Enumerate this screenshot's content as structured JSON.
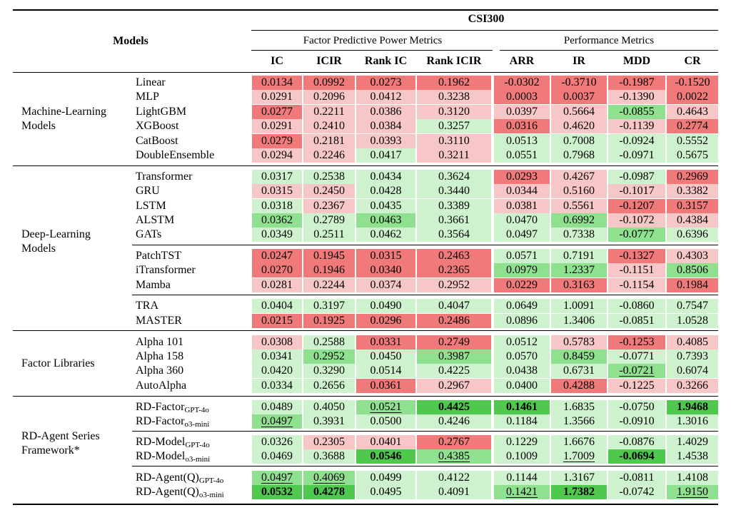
{
  "title": "CSI300",
  "header": {
    "models": "Models",
    "group1": "Factor Predictive Power Metrics",
    "group2": "Performance Metrics",
    "columns": [
      "IC",
      "ICIR",
      "Rank IC",
      "Rank ICIR",
      "ARR",
      "IR",
      "MDD",
      "CR"
    ]
  },
  "colors": {
    "red_strong": "#f07979",
    "red_light": "#f7c6c6",
    "green_light": "#cdf2cd",
    "green_mid": "#8fe08f",
    "green_strong": "#4ec94e",
    "green_dark": "#1aa81a"
  },
  "groups": [
    {
      "name_lines": [
        "Machine-Learning",
        "Models"
      ],
      "rows": [
        {
          "model": "Linear",
          "sub": "",
          "cells": [
            [
              "0.0134",
              "rs"
            ],
            [
              "0.0992",
              "rs"
            ],
            [
              "0.0273",
              "rs"
            ],
            [
              "0.1962",
              "rs"
            ],
            [
              "-0.0302",
              "rs"
            ],
            [
              "-0.3710",
              "rs"
            ],
            [
              "-0.1987",
              "rs"
            ],
            [
              "-0.1520",
              "rs"
            ]
          ]
        },
        {
          "model": "MLP",
          "sub": "",
          "cells": [
            [
              "0.0291",
              "rl"
            ],
            [
              "0.2096",
              "rl"
            ],
            [
              "0.0412",
              "rl"
            ],
            [
              "0.3238",
              "rl"
            ],
            [
              "0.0003",
              "rs"
            ],
            [
              "0.0037",
              "rs"
            ],
            [
              "-0.1390",
              "rl"
            ],
            [
              "0.0022",
              "rs"
            ]
          ]
        },
        {
          "model": "LightGBM",
          "sub": "",
          "cells": [
            [
              "0.0277",
              "rs"
            ],
            [
              "0.2211",
              "rl"
            ],
            [
              "0.0386",
              "rl"
            ],
            [
              "0.3120",
              "rl"
            ],
            [
              "0.0397",
              "rl"
            ],
            [
              "0.5664",
              "rl"
            ],
            [
              "-0.0855",
              "gm"
            ],
            [
              "0.4643",
              "rl"
            ]
          ]
        },
        {
          "model": "XGBoost",
          "sub": "",
          "cells": [
            [
              "0.0291",
              "rl"
            ],
            [
              "0.2410",
              "rl"
            ],
            [
              "0.0384",
              "rl"
            ],
            [
              "0.3257",
              "gl"
            ],
            [
              "0.0316",
              "rs"
            ],
            [
              "0.4620",
              "rl"
            ],
            [
              "-0.1139",
              "rl"
            ],
            [
              "0.2774",
              "rs"
            ]
          ]
        },
        {
          "model": "CatBoost",
          "sub": "",
          "cells": [
            [
              "0.0279",
              "rs"
            ],
            [
              "0.2181",
              "rl"
            ],
            [
              "0.0393",
              "rl"
            ],
            [
              "0.3110",
              "rl"
            ],
            [
              "0.0513",
              "gl"
            ],
            [
              "0.7008",
              "gl"
            ],
            [
              "-0.0924",
              "gl"
            ],
            [
              "0.5552",
              "gl"
            ]
          ]
        },
        {
          "model": "DoubleEnsemble",
          "sub": "",
          "cells": [
            [
              "0.0294",
              "rl"
            ],
            [
              "0.2246",
              "rl"
            ],
            [
              "0.0417",
              "gl"
            ],
            [
              "0.3211",
              "rl"
            ],
            [
              "0.0551",
              "gl"
            ],
            [
              "0.7968",
              "gl"
            ],
            [
              "-0.0971",
              "gl"
            ],
            [
              "0.5675",
              "gl"
            ]
          ]
        }
      ]
    },
    {
      "name_lines": [
        "Deep-Learning",
        "Models"
      ],
      "rows": [
        {
          "model": "Transformer",
          "sub": "",
          "cells": [
            [
              "0.0317",
              "gl"
            ],
            [
              "0.2538",
              "gl"
            ],
            [
              "0.0434",
              "gl"
            ],
            [
              "0.3624",
              "gl"
            ],
            [
              "0.0293",
              "rs"
            ],
            [
              "0.4267",
              "rl"
            ],
            [
              "-0.0987",
              "gl"
            ],
            [
              "0.2969",
              "rs"
            ]
          ]
        },
        {
          "model": "GRU",
          "sub": "",
          "cells": [
            [
              "0.0315",
              "rl"
            ],
            [
              "0.2450",
              "rl"
            ],
            [
              "0.0428",
              "gl"
            ],
            [
              "0.3440",
              "gl"
            ],
            [
              "0.0344",
              "rl"
            ],
            [
              "0.5160",
              "rl"
            ],
            [
              "-0.1017",
              "rl"
            ],
            [
              "0.3382",
              "rl"
            ]
          ]
        },
        {
          "model": "LSTM",
          "sub": "",
          "cells": [
            [
              "0.0318",
              "gl"
            ],
            [
              "0.2367",
              "rl"
            ],
            [
              "0.0435",
              "gl"
            ],
            [
              "0.3389",
              "gl"
            ],
            [
              "0.0381",
              "rl"
            ],
            [
              "0.5561",
              "rl"
            ],
            [
              "-0.1207",
              "rs"
            ],
            [
              "0.3157",
              "rs"
            ]
          ]
        },
        {
          "model": "ALSTM",
          "sub": "",
          "cells": [
            [
              "0.0362",
              "gm"
            ],
            [
              "0.2789",
              "gl"
            ],
            [
              "0.0463",
              "gm"
            ],
            [
              "0.3661",
              "gl"
            ],
            [
              "0.0470",
              "gl"
            ],
            [
              "0.6992",
              "gm"
            ],
            [
              "-0.1072",
              "rl"
            ],
            [
              "0.4384",
              "rl"
            ]
          ]
        },
        {
          "model": "GATs",
          "sub": "",
          "cells": [
            [
              "0.0349",
              "gl"
            ],
            [
              "0.2511",
              "gl"
            ],
            [
              "0.0462",
              "gl"
            ],
            [
              "0.3564",
              "gl"
            ],
            [
              "0.0497",
              "gl"
            ],
            [
              "0.7338",
              "gl"
            ],
            [
              "-0.0777",
              "gm"
            ],
            [
              "0.6396",
              "gl"
            ]
          ]
        },
        {
          "model": "PatchTST",
          "sub": "",
          "cells": [
            [
              "0.0247",
              "rs"
            ],
            [
              "0.1945",
              "rs"
            ],
            [
              "0.0315",
              "rs"
            ],
            [
              "0.2463",
              "rs"
            ],
            [
              "0.0571",
              "gl"
            ],
            [
              "0.7191",
              "gl"
            ],
            [
              "-0.1327",
              "rs"
            ],
            [
              "0.4303",
              "rl"
            ]
          ]
        },
        {
          "model": "iTransformer",
          "sub": "",
          "cells": [
            [
              "0.0270",
              "rs"
            ],
            [
              "0.1946",
              "rs"
            ],
            [
              "0.0340",
              "rs"
            ],
            [
              "0.2365",
              "rs"
            ],
            [
              "0.0979",
              "gm"
            ],
            [
              "1.2337",
              "gm"
            ],
            [
              "-0.1151",
              "rl"
            ],
            [
              "0.8506",
              "gm"
            ]
          ]
        },
        {
          "model": "Mamba",
          "sub": "",
          "cells": [
            [
              "0.0281",
              "rl"
            ],
            [
              "0.2244",
              "rl"
            ],
            [
              "0.0374",
              "rl"
            ],
            [
              "0.2952",
              "rl"
            ],
            [
              "0.0229",
              "rs"
            ],
            [
              "0.3163",
              "rs"
            ],
            [
              "-0.1154",
              "rl"
            ],
            [
              "0.1984",
              "rs"
            ]
          ]
        },
        {
          "model": "TRA",
          "sub": "",
          "cells": [
            [
              "0.0404",
              "gl"
            ],
            [
              "0.3197",
              "gl"
            ],
            [
              "0.0490",
              "gl"
            ],
            [
              "0.4047",
              "gl"
            ],
            [
              "0.0649",
              "gl"
            ],
            [
              "1.0091",
              "gl"
            ],
            [
              "-0.0860",
              "gl"
            ],
            [
              "0.7547",
              "gl"
            ]
          ]
        },
        {
          "model": "MASTER",
          "sub": "",
          "cells": [
            [
              "0.0215",
              "rs"
            ],
            [
              "0.1925",
              "rs"
            ],
            [
              "0.0296",
              "rs"
            ],
            [
              "0.2486",
              "rs"
            ],
            [
              "0.0896",
              "gl"
            ],
            [
              "1.3406",
              "gl"
            ],
            [
              "-0.0851",
              "gl"
            ],
            [
              "1.0528",
              "gl"
            ]
          ]
        }
      ]
    },
    {
      "name_lines": [
        "Factor Libraries"
      ],
      "rows": [
        {
          "model": "Alpha 101",
          "sub": "",
          "cells": [
            [
              "0.0308",
              "rl"
            ],
            [
              "0.2588",
              "gl"
            ],
            [
              "0.0331",
              "rs"
            ],
            [
              "0.2749",
              "rs"
            ],
            [
              "0.0512",
              "gl"
            ],
            [
              "0.5783",
              "rl"
            ],
            [
              "-0.1253",
              "rs"
            ],
            [
              "0.4085",
              "rl"
            ]
          ]
        },
        {
          "model": "Alpha 158",
          "sub": "",
          "cells": [
            [
              "0.0341",
              "gl"
            ],
            [
              "0.2952",
              "gm"
            ],
            [
              "0.0450",
              "gl"
            ],
            [
              "0.3987",
              "gm"
            ],
            [
              "0.0570",
              "gl"
            ],
            [
              "0.8459",
              "gm"
            ],
            [
              "-0.0771",
              "gl"
            ],
            [
              "0.7393",
              "gl"
            ]
          ]
        },
        {
          "model": "Alpha 360",
          "sub": "",
          "cells": [
            [
              "0.0420",
              "gl"
            ],
            [
              "0.3290",
              "gl"
            ],
            [
              "0.0514",
              "gl"
            ],
            [
              "0.4225",
              "gl"
            ],
            [
              "0.0438",
              "gl"
            ],
            [
              "0.6731",
              "gl"
            ],
            [
              "-0.0721",
              "gm",
              "u"
            ],
            [
              "0.6074",
              "gl"
            ]
          ]
        },
        {
          "model": "AutoAlpha",
          "sub": "",
          "cells": [
            [
              "0.0334",
              "gl"
            ],
            [
              "0.2656",
              "gl"
            ],
            [
              "0.0361",
              "rs"
            ],
            [
              "0.2967",
              "rl"
            ],
            [
              "0.0400",
              "gl"
            ],
            [
              "0.4288",
              "rs"
            ],
            [
              "-0.1225",
              "rl"
            ],
            [
              "0.3266",
              "rl"
            ]
          ]
        }
      ]
    },
    {
      "name_lines": [
        "RD-Agent Series",
        "Framework*"
      ],
      "rows": [
        {
          "model": "RD-Factor",
          "sub": "GPT-4o",
          "cells": [
            [
              "0.0489",
              "gl"
            ],
            [
              "0.4050",
              "gl"
            ],
            [
              "0.0521",
              "gm",
              "u"
            ],
            [
              "0.4425",
              "gs",
              "b"
            ],
            [
              "0.1461",
              "gs",
              "b"
            ],
            [
              "1.6835",
              "gl"
            ],
            [
              "-0.0750",
              "gl"
            ],
            [
              "1.9468",
              "gs",
              "b"
            ]
          ]
        },
        {
          "model": "RD-Factor",
          "sub": "o3-mini",
          "cells": [
            [
              "0.0497",
              "gm",
              "u"
            ],
            [
              "0.3931",
              "gl"
            ],
            [
              "0.0500",
              "gl"
            ],
            [
              "0.4246",
              "gl"
            ],
            [
              "0.1184",
              "gl"
            ],
            [
              "1.3566",
              "gl"
            ],
            [
              "-0.0910",
              "gl"
            ],
            [
              "1.3016",
              "gl"
            ]
          ]
        },
        {
          "model": "RD-Model",
          "sub": "GPT-4o",
          "cells": [
            [
              "0.0326",
              "gl"
            ],
            [
              "0.2305",
              "rl"
            ],
            [
              "0.0401",
              "rl"
            ],
            [
              "0.2767",
              "rs"
            ],
            [
              "0.1229",
              "gl"
            ],
            [
              "1.6676",
              "gl"
            ],
            [
              "-0.0876",
              "gl"
            ],
            [
              "1.4029",
              "gl"
            ]
          ]
        },
        {
          "model": "RD-Model",
          "sub": "o3-mini",
          "cells": [
            [
              "0.0469",
              "gl"
            ],
            [
              "0.3688",
              "gl"
            ],
            [
              "0.0546",
              "gs",
              "b"
            ],
            [
              "0.4385",
              "gm",
              "u"
            ],
            [
              "0.1009",
              "gl"
            ],
            [
              "1.7009",
              "gl",
              "u"
            ],
            [
              "-0.0694",
              "gs",
              "b"
            ],
            [
              "1.4538",
              "gl"
            ]
          ]
        },
        {
          "model": "RD-Agent(Q)",
          "sub": "GPT-4o",
          "cells": [
            [
              "0.0497",
              "gm",
              "u"
            ],
            [
              "0.4069",
              "gm",
              "u"
            ],
            [
              "0.0499",
              "gl"
            ],
            [
              "0.4122",
              "gl"
            ],
            [
              "0.1144",
              "gl"
            ],
            [
              "1.3167",
              "gl"
            ],
            [
              "-0.0811",
              "gl"
            ],
            [
              "1.4108",
              "gl"
            ]
          ]
        },
        {
          "model": "RD-Agent(Q)",
          "sub": "o3-mini",
          "cells": [
            [
              "0.0532",
              "gs",
              "b"
            ],
            [
              "0.4278",
              "gs",
              "b"
            ],
            [
              "0.0495",
              "gl"
            ],
            [
              "0.4091",
              "gl"
            ],
            [
              "0.1421",
              "gm",
              "u"
            ],
            [
              "1.7382",
              "gs",
              "b"
            ],
            [
              "-0.0742",
              "gl"
            ],
            [
              "1.9150",
              "gm",
              "u"
            ]
          ]
        }
      ]
    }
  ]
}
